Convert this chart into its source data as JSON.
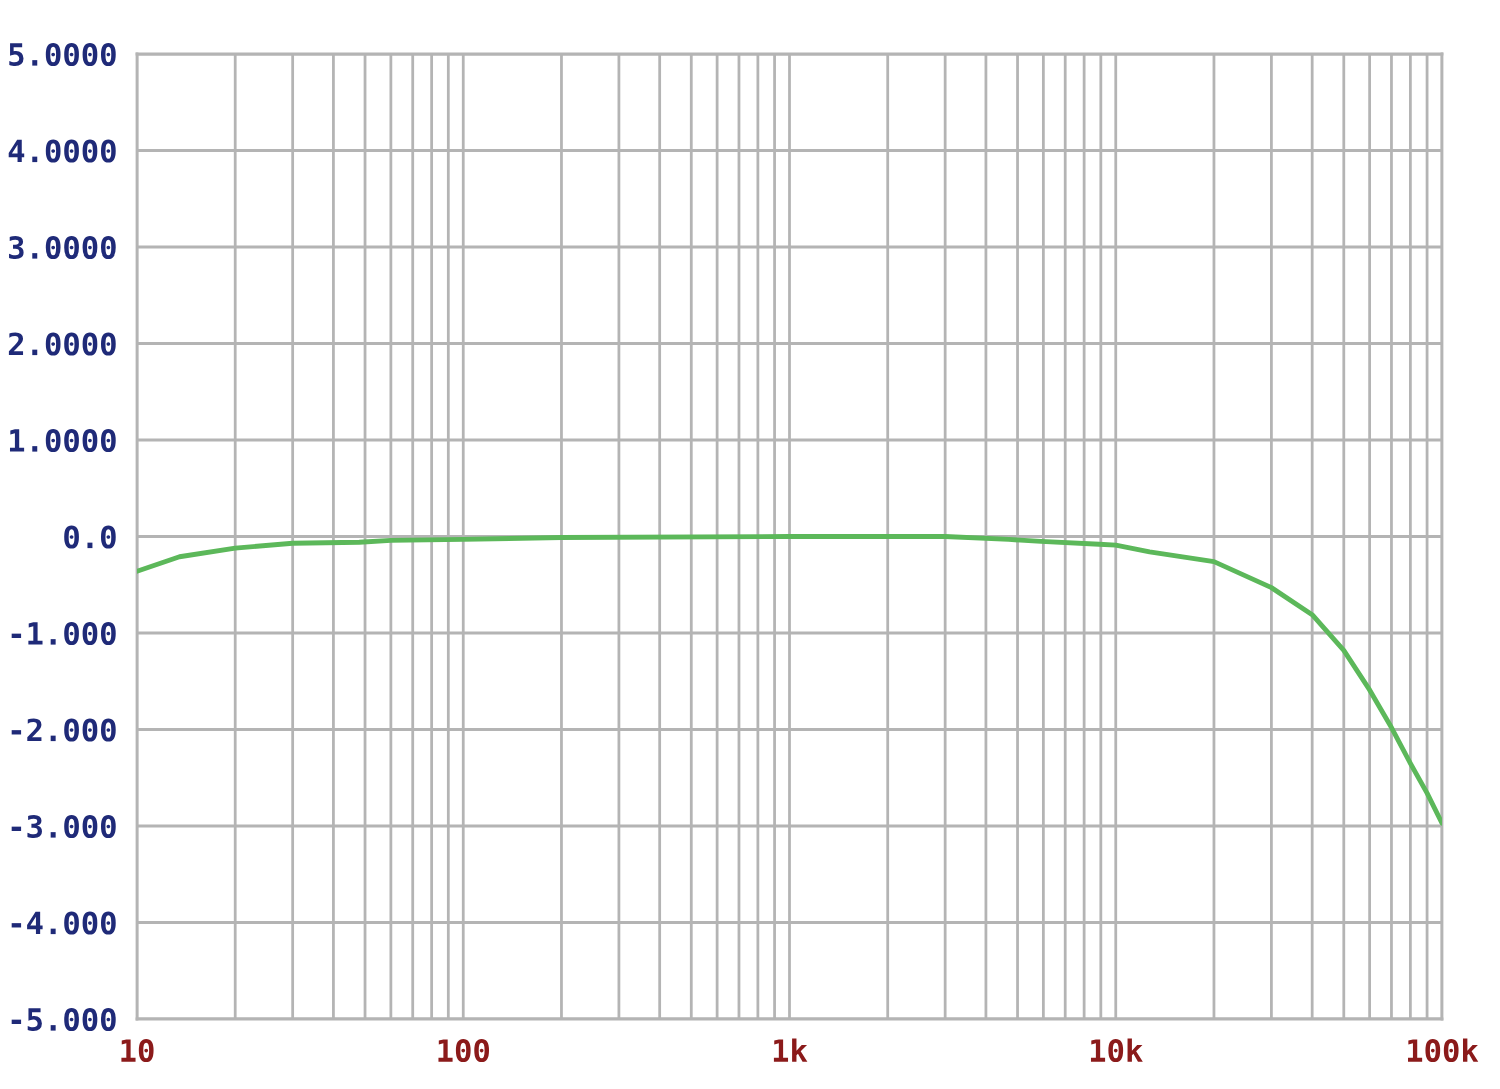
{
  "chart_data": {
    "type": "line",
    "log": "x",
    "x": [
      10,
      13.5,
      20,
      30,
      48,
      60,
      100,
      200,
      1000,
      3000,
      4700,
      5900,
      8900,
      10000,
      12700,
      20000,
      30000,
      40000,
      50000,
      60000,
      70000,
      80000,
      90000,
      100000
    ],
    "series": [
      {
        "color": "#5cb85a",
        "values": [
          -0.36,
          -0.21,
          -0.12,
          -0.07,
          -0.06,
          -0.04,
          -0.03,
          -0.01,
          0,
          0,
          -0.03,
          -0.05,
          -0.08,
          -0.09,
          -0.16,
          -0.26,
          -0.53,
          -0.81,
          -1.18,
          -1.59,
          -1.98,
          -2.35,
          -2.66,
          -2.97
        ]
      }
    ],
    "xlim": [
      10,
      100000
    ],
    "ylim": [
      -5,
      5
    ],
    "xticks": [
      {
        "value": 10,
        "label": "10"
      },
      {
        "value": 20,
        "label": null
      },
      {
        "value": 30,
        "label": null
      },
      {
        "value": 40,
        "label": null
      },
      {
        "value": 50,
        "label": null
      },
      {
        "value": 60,
        "label": null
      },
      {
        "value": 70,
        "label": null
      },
      {
        "value": 80,
        "label": null
      },
      {
        "value": 90,
        "label": null
      },
      {
        "value": 100,
        "label": "100"
      },
      {
        "value": 200,
        "label": null
      },
      {
        "value": 300,
        "label": null
      },
      {
        "value": 400,
        "label": null
      },
      {
        "value": 500,
        "label": null
      },
      {
        "value": 600,
        "label": null
      },
      {
        "value": 700,
        "label": null
      },
      {
        "value": 800,
        "label": null
      },
      {
        "value": 900,
        "label": null
      },
      {
        "value": 1000,
        "label": "1k"
      },
      {
        "value": 2000,
        "label": null
      },
      {
        "value": 3000,
        "label": null
      },
      {
        "value": 4000,
        "label": null
      },
      {
        "value": 5000,
        "label": null
      },
      {
        "value": 6000,
        "label": null
      },
      {
        "value": 7000,
        "label": null
      },
      {
        "value": 8000,
        "label": null
      },
      {
        "value": 9000,
        "label": null
      },
      {
        "value": 10000,
        "label": "10k"
      },
      {
        "value": 20000,
        "label": null
      },
      {
        "value": 30000,
        "label": null
      },
      {
        "value": 40000,
        "label": null
      },
      {
        "value": 50000,
        "label": null
      },
      {
        "value": 60000,
        "label": null
      },
      {
        "value": 70000,
        "label": null
      },
      {
        "value": 80000,
        "label": null
      },
      {
        "value": 90000,
        "label": null
      },
      {
        "value": 100000,
        "label": "100k"
      }
    ],
    "yticks": [
      {
        "value": 5,
        "label": "5.0000"
      },
      {
        "value": 4,
        "label": "4.0000"
      },
      {
        "value": 3,
        "label": "3.0000"
      },
      {
        "value": 2,
        "label": "2.0000"
      },
      {
        "value": 1,
        "label": "1.0000"
      },
      {
        "value": 0,
        "label": "0.0"
      },
      {
        "value": -1,
        "label": "-1.000"
      },
      {
        "value": -2,
        "label": "-2.000"
      },
      {
        "value": -3,
        "label": "-3.000"
      },
      {
        "value": -4,
        "label": "-4.000"
      },
      {
        "value": -5,
        "label": "-5.000"
      }
    ],
    "grid": true,
    "legend": false
  }
}
